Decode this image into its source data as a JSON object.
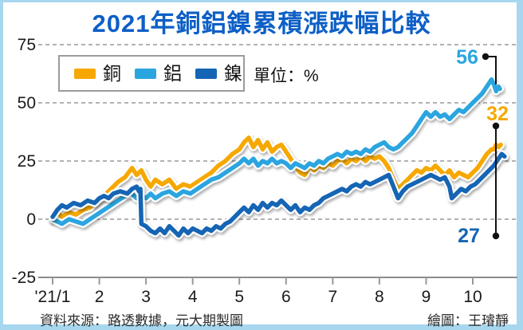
{
  "page": {
    "frame_color": "#A7D7EE",
    "card_color": "#FFFFFF"
  },
  "title": {
    "text": "2021年銅鋁鎳累積漲跌幅比較",
    "color": "#0D5FC6"
  },
  "legend": {
    "unit_label": "單位：%",
    "items": [
      {
        "label": "銅",
        "color": "#F6A800"
      },
      {
        "label": "鋁",
        "color": "#2BA5E0"
      },
      {
        "label": "鎳",
        "color": "#1565B4"
      }
    ]
  },
  "footer": {
    "source": "資料來源：路透數據，元大期製圖",
    "credit": "繪圖：王璿靜"
  },
  "chart_data": {
    "type": "line",
    "title": "2021年銅鋁鎳累積漲跌幅比較",
    "unit": "%",
    "grid": "dashed horizontal gridlines at 0,25,50,75; solid axis at -25",
    "legend_position": "top-left boxed",
    "x_tick_labels": [
      "'21/1",
      "2",
      "3",
      "4",
      "5",
      "6",
      "7",
      "8",
      "9",
      "10"
    ],
    "x_tick_months": [
      1,
      2,
      3,
      4,
      5,
      6,
      7,
      8,
      9,
      10
    ],
    "y_tick_labels": [
      "75",
      "50",
      "25",
      "0",
      "-25"
    ],
    "y_tick_values": [
      75,
      50,
      25,
      0,
      -25
    ],
    "ylim": [
      -25,
      75
    ],
    "xlim": [
      0.95,
      10.85
    ],
    "axis_color": "#8c8c8c",
    "grid_color": "#999999",
    "end_labels": [
      {
        "label": "56",
        "series": "鋁",
        "color": "#2BA5E0"
      },
      {
        "label": "32",
        "series": "銅",
        "color": "#F6A800"
      },
      {
        "label": "27",
        "series": "鎳",
        "color": "#1565B4"
      }
    ],
    "series": [
      {
        "name": "銅",
        "color": "#F6A800",
        "end_value": 32,
        "points": [
          [
            1.0,
            0
          ],
          [
            1.1,
            3
          ],
          [
            1.2,
            1
          ],
          [
            1.35,
            3
          ],
          [
            1.5,
            2
          ],
          [
            1.65,
            4
          ],
          [
            1.8,
            5
          ],
          [
            1.95,
            8
          ],
          [
            2.1,
            10
          ],
          [
            2.25,
            13
          ],
          [
            2.4,
            16
          ],
          [
            2.55,
            18
          ],
          [
            2.7,
            22
          ],
          [
            2.8,
            19
          ],
          [
            2.9,
            21
          ],
          [
            3.0,
            17
          ],
          [
            3.1,
            14
          ],
          [
            3.2,
            17
          ],
          [
            3.35,
            15
          ],
          [
            3.5,
            17
          ],
          [
            3.65,
            13
          ],
          [
            3.8,
            15
          ],
          [
            3.95,
            14
          ],
          [
            4.1,
            16
          ],
          [
            4.25,
            18
          ],
          [
            4.4,
            20
          ],
          [
            4.55,
            23
          ],
          [
            4.7,
            25
          ],
          [
            4.85,
            28
          ],
          [
            5.0,
            30
          ],
          [
            5.1,
            33
          ],
          [
            5.2,
            35
          ],
          [
            5.3,
            31
          ],
          [
            5.4,
            34
          ],
          [
            5.5,
            30
          ],
          [
            5.6,
            33
          ],
          [
            5.7,
            29
          ],
          [
            5.8,
            31
          ],
          [
            5.9,
            32
          ],
          [
            6.0,
            29
          ],
          [
            6.1,
            26
          ],
          [
            6.2,
            23
          ],
          [
            6.3,
            20
          ],
          [
            6.4,
            19
          ],
          [
            6.5,
            23
          ],
          [
            6.6,
            21
          ],
          [
            6.7,
            23
          ],
          [
            6.8,
            22
          ],
          [
            6.9,
            24
          ],
          [
            7.0,
            23
          ],
          [
            7.1,
            25
          ],
          [
            7.2,
            26
          ],
          [
            7.3,
            24
          ],
          [
            7.4,
            26
          ],
          [
            7.5,
            25
          ],
          [
            7.6,
            27
          ],
          [
            7.7,
            25
          ],
          [
            7.8,
            27
          ],
          [
            7.9,
            26
          ],
          [
            8.0,
            27
          ],
          [
            8.1,
            25
          ],
          [
            8.2,
            22
          ],
          [
            8.3,
            17
          ],
          [
            8.4,
            13
          ],
          [
            8.5,
            15
          ],
          [
            8.6,
            17
          ],
          [
            8.7,
            19
          ],
          [
            8.8,
            21
          ],
          [
            8.9,
            20
          ],
          [
            9.0,
            22
          ],
          [
            9.1,
            21
          ],
          [
            9.2,
            23
          ],
          [
            9.3,
            21
          ],
          [
            9.4,
            19
          ],
          [
            9.5,
            21
          ],
          [
            9.6,
            18
          ],
          [
            9.7,
            20
          ],
          [
            9.8,
            19
          ],
          [
            9.9,
            18
          ],
          [
            10.0,
            20
          ],
          [
            10.1,
            22
          ],
          [
            10.2,
            25
          ],
          [
            10.3,
            28
          ],
          [
            10.4,
            30
          ],
          [
            10.45,
            30
          ],
          [
            10.5,
            32
          ],
          [
            10.55,
            31
          ],
          [
            10.6,
            32
          ]
        ]
      },
      {
        "name": "鋁",
        "color": "#2BA5E0",
        "end_value": 56,
        "points": [
          [
            1.0,
            0
          ],
          [
            1.1,
            -1
          ],
          [
            1.2,
            -2
          ],
          [
            1.35,
            0
          ],
          [
            1.5,
            -1
          ],
          [
            1.65,
            -2
          ],
          [
            1.8,
            0
          ],
          [
            1.95,
            2
          ],
          [
            2.1,
            4
          ],
          [
            2.25,
            6
          ],
          [
            2.4,
            8
          ],
          [
            2.55,
            10
          ],
          [
            2.7,
            11
          ],
          [
            2.8,
            9
          ],
          [
            2.9,
            10
          ],
          [
            3.0,
            9
          ],
          [
            3.1,
            11
          ],
          [
            3.2,
            9
          ],
          [
            3.35,
            11
          ],
          [
            3.5,
            12
          ],
          [
            3.65,
            10
          ],
          [
            3.8,
            12
          ],
          [
            3.95,
            11
          ],
          [
            4.1,
            13
          ],
          [
            4.25,
            15
          ],
          [
            4.4,
            17
          ],
          [
            4.55,
            18
          ],
          [
            4.7,
            20
          ],
          [
            4.85,
            22
          ],
          [
            5.0,
            24
          ],
          [
            5.1,
            26
          ],
          [
            5.2,
            24
          ],
          [
            5.3,
            26
          ],
          [
            5.4,
            23
          ],
          [
            5.5,
            25
          ],
          [
            5.6,
            24
          ],
          [
            5.7,
            26
          ],
          [
            5.8,
            24
          ],
          [
            5.9,
            25
          ],
          [
            6.0,
            24
          ],
          [
            6.1,
            22
          ],
          [
            6.2,
            24
          ],
          [
            6.3,
            23
          ],
          [
            6.4,
            22
          ],
          [
            6.5,
            24
          ],
          [
            6.6,
            23
          ],
          [
            6.7,
            25
          ],
          [
            6.8,
            24
          ],
          [
            6.9,
            26
          ],
          [
            7.0,
            27
          ],
          [
            7.1,
            28
          ],
          [
            7.2,
            27
          ],
          [
            7.3,
            29
          ],
          [
            7.4,
            28
          ],
          [
            7.5,
            29
          ],
          [
            7.6,
            28
          ],
          [
            7.7,
            30
          ],
          [
            7.8,
            29
          ],
          [
            7.9,
            31
          ],
          [
            8.0,
            32
          ],
          [
            8.1,
            33
          ],
          [
            8.2,
            31
          ],
          [
            8.3,
            30
          ],
          [
            8.4,
            31
          ],
          [
            8.5,
            33
          ],
          [
            8.6,
            35
          ],
          [
            8.7,
            37
          ],
          [
            8.8,
            40
          ],
          [
            8.9,
            43
          ],
          [
            9.0,
            46
          ],
          [
            9.1,
            44
          ],
          [
            9.2,
            46
          ],
          [
            9.3,
            44
          ],
          [
            9.4,
            45
          ],
          [
            9.5,
            43
          ],
          [
            9.6,
            45
          ],
          [
            9.7,
            47
          ],
          [
            9.8,
            46
          ],
          [
            9.9,
            48
          ],
          [
            10.0,
            50
          ],
          [
            10.1,
            52
          ],
          [
            10.2,
            54
          ],
          [
            10.3,
            57
          ],
          [
            10.4,
            60
          ],
          [
            10.45,
            58
          ],
          [
            10.5,
            55
          ],
          [
            10.55,
            57
          ],
          [
            10.58,
            56
          ]
        ]
      },
      {
        "name": "鎳",
        "color": "#1565B4",
        "end_value": 27,
        "points": [
          [
            1.0,
            1
          ],
          [
            1.1,
            4
          ],
          [
            1.2,
            6
          ],
          [
            1.3,
            5
          ],
          [
            1.45,
            7
          ],
          [
            1.6,
            6
          ],
          [
            1.75,
            8
          ],
          [
            1.9,
            7
          ],
          [
            2.0,
            9
          ],
          [
            2.1,
            10
          ],
          [
            2.2,
            9
          ],
          [
            2.3,
            11
          ],
          [
            2.45,
            12
          ],
          [
            2.6,
            11
          ],
          [
            2.7,
            13
          ],
          [
            2.8,
            14
          ],
          [
            2.85,
            12
          ],
          [
            2.88,
            13
          ],
          [
            2.9,
            -2
          ],
          [
            3.0,
            -3
          ],
          [
            3.1,
            -5
          ],
          [
            3.2,
            -6
          ],
          [
            3.3,
            -4
          ],
          [
            3.4,
            -6
          ],
          [
            3.5,
            -3
          ],
          [
            3.6,
            -5
          ],
          [
            3.7,
            -7
          ],
          [
            3.8,
            -4
          ],
          [
            3.9,
            -6
          ],
          [
            4.0,
            -4
          ],
          [
            4.1,
            -5
          ],
          [
            4.2,
            -6
          ],
          [
            4.3,
            -4
          ],
          [
            4.4,
            -5
          ],
          [
            4.5,
            -3
          ],
          [
            4.6,
            -4
          ],
          [
            4.7,
            -2
          ],
          [
            4.8,
            -1
          ],
          [
            4.9,
            1
          ],
          [
            5.0,
            3
          ],
          [
            5.1,
            5
          ],
          [
            5.2,
            3
          ],
          [
            5.3,
            6
          ],
          [
            5.4,
            4
          ],
          [
            5.5,
            7
          ],
          [
            5.6,
            5
          ],
          [
            5.7,
            7
          ],
          [
            5.8,
            6
          ],
          [
            5.9,
            8
          ],
          [
            6.0,
            6
          ],
          [
            6.1,
            4
          ],
          [
            6.2,
            6
          ],
          [
            6.3,
            3
          ],
          [
            6.4,
            5
          ],
          [
            6.5,
            4
          ],
          [
            6.6,
            6
          ],
          [
            6.7,
            7
          ],
          [
            6.8,
            9
          ],
          [
            6.9,
            10
          ],
          [
            7.0,
            11
          ],
          [
            7.1,
            12
          ],
          [
            7.2,
            13
          ],
          [
            7.3,
            12
          ],
          [
            7.4,
            14
          ],
          [
            7.5,
            15
          ],
          [
            7.6,
            14
          ],
          [
            7.7,
            16
          ],
          [
            7.8,
            15
          ],
          [
            7.9,
            16
          ],
          [
            8.0,
            17
          ],
          [
            8.1,
            18
          ],
          [
            8.2,
            19
          ],
          [
            8.3,
            14
          ],
          [
            8.4,
            9
          ],
          [
            8.5,
            12
          ],
          [
            8.6,
            14
          ],
          [
            8.7,
            15
          ],
          [
            8.8,
            16
          ],
          [
            8.9,
            17
          ],
          [
            9.0,
            18
          ],
          [
            9.1,
            19
          ],
          [
            9.2,
            18
          ],
          [
            9.3,
            17
          ],
          [
            9.4,
            18
          ],
          [
            9.5,
            14
          ],
          [
            9.55,
            9
          ],
          [
            9.65,
            11
          ],
          [
            9.75,
            13
          ],
          [
            9.85,
            12
          ],
          [
            9.95,
            14
          ],
          [
            10.05,
            15
          ],
          [
            10.15,
            17
          ],
          [
            10.25,
            19
          ],
          [
            10.35,
            21
          ],
          [
            10.45,
            23
          ],
          [
            10.55,
            26
          ],
          [
            10.62,
            28
          ],
          [
            10.68,
            27
          ]
        ]
      }
    ]
  }
}
